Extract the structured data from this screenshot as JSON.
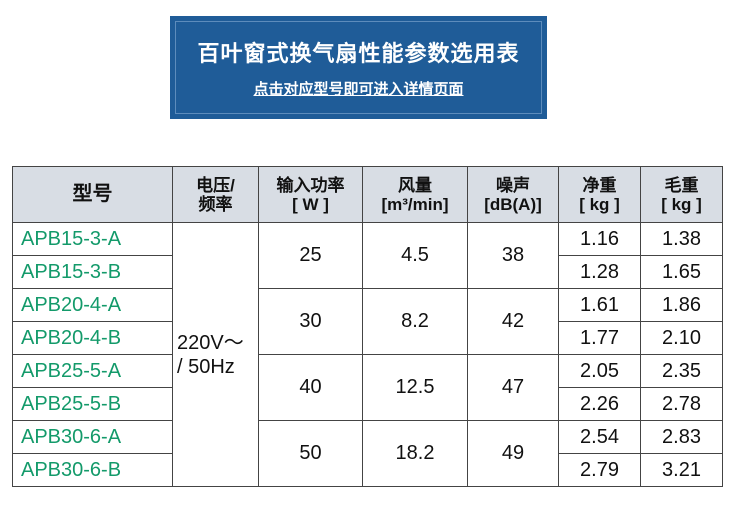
{
  "banner": {
    "title": "百叶窗式换气扇性能参数选用表",
    "subtitle": "点击对应型号即可进入详情页面",
    "color": "#1f5c98"
  },
  "table": {
    "headers": [
      {
        "l1": "型号",
        "l2": ""
      },
      {
        "l1": "电压/",
        "l2": "频率"
      },
      {
        "l1": "输入功率",
        "l2": "[ W ]"
      },
      {
        "l1": "风量",
        "l2": "[m³/min]"
      },
      {
        "l1": "噪声",
        "l2": "[dB(A)]"
      },
      {
        "l1": "净重",
        "l2": "[ kg ]"
      },
      {
        "l1": "毛重",
        "l2": "[ kg ]"
      }
    ],
    "voltage": {
      "l1": "220V～",
      "l2": "/ 50Hz"
    },
    "groups": [
      {
        "power": "25",
        "airflow": "4.5",
        "noise": "38"
      },
      {
        "power": "30",
        "airflow": "8.2",
        "noise": "42"
      },
      {
        "power": "40",
        "airflow": "12.5",
        "noise": "47"
      },
      {
        "power": "50",
        "airflow": "18.2",
        "noise": "49"
      }
    ],
    "rows": [
      {
        "model": "APB15-3-A",
        "net": "1.16",
        "gross": "1.38"
      },
      {
        "model": "APB15-3-B",
        "net": "1.28",
        "gross": "1.65"
      },
      {
        "model": "APB20-4-A",
        "net": "1.61",
        "gross": "1.86"
      },
      {
        "model": "APB20-4-B",
        "net": "1.77",
        "gross": "2.10"
      },
      {
        "model": "APB25-5-A",
        "net": "2.05",
        "gross": "2.35"
      },
      {
        "model": "APB25-5-B",
        "net": "2.26",
        "gross": "2.78"
      },
      {
        "model": "APB30-6-A",
        "net": "2.54",
        "gross": "2.83"
      },
      {
        "model": "APB30-6-B",
        "net": "2.79",
        "gross": "3.21"
      }
    ],
    "model_color": "#139a6a"
  }
}
